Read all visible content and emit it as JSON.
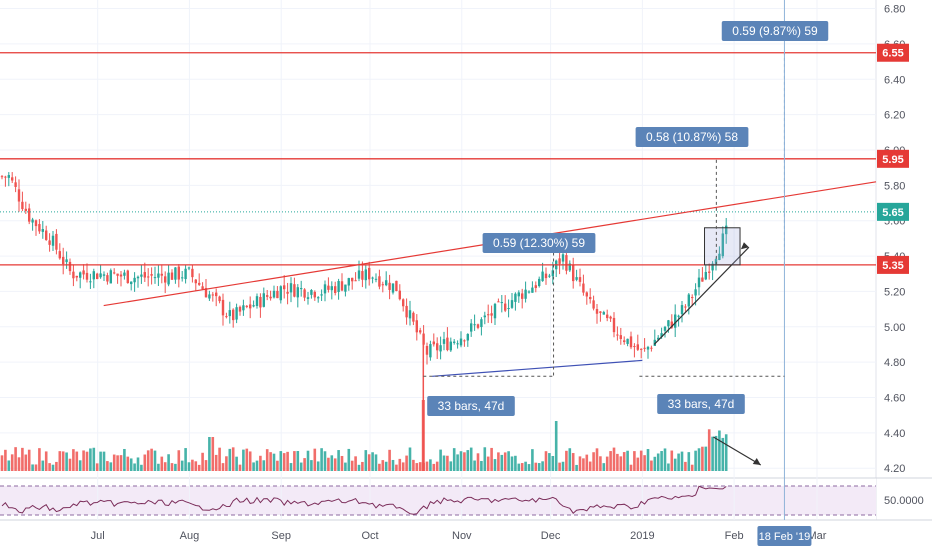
{
  "chart_data": {
    "type": "candlestick",
    "price_axis": {
      "ticks": [
        4.2,
        4.4,
        4.6,
        4.8,
        5.0,
        5.2,
        5.4,
        5.6,
        5.8,
        6.0,
        6.2,
        6.4,
        6.6,
        6.8
      ],
      "tick_labels": [
        "4.20",
        "4.40",
        "4.60",
        "4.80",
        "5.00",
        "5.20",
        "5.40",
        "5.60",
        "5.80",
        "6.00",
        "6.20",
        "6.40",
        "6.60",
        "6.80"
      ],
      "range": [
        4.19,
        6.82
      ]
    },
    "time_axis": {
      "labels": [
        "Jul",
        "Aug",
        "Sep",
        "Oct",
        "Nov",
        "Dec",
        "2019",
        "Feb",
        "Mar"
      ],
      "highlight_label": "18 Feb '19"
    },
    "rsi_axis": {
      "label": "50.0000"
    },
    "price_badges": [
      {
        "value": "6.55",
        "color": "#e53935"
      },
      {
        "value": "5.95",
        "color": "#e53935"
      },
      {
        "value": "5.65",
        "color": "#26a69a"
      },
      {
        "value": "5.35",
        "color": "#e53935"
      }
    ],
    "horizontal_levels": [
      6.55,
      5.95,
      5.35
    ],
    "last_price": 5.65,
    "annotations": {
      "measure_top": "0.59 (9.87%) 59",
      "measure_mid": "0.58 (10.87%) 58",
      "measure_left": "0.59 (12.30%) 59",
      "bars_left": "33 bars, 47d",
      "bars_right": "33 bars, 47d"
    },
    "trend_series_approx_close": [
      {
        "d": "2018-06-01",
        "close": 5.85
      },
      {
        "d": "2018-06-08",
        "close": 5.62
      },
      {
        "d": "2018-06-15",
        "close": 5.5
      },
      {
        "d": "2018-06-22",
        "close": 5.3
      },
      {
        "d": "2018-07-01",
        "close": 5.3
      },
      {
        "d": "2018-07-15",
        "close": 5.28
      },
      {
        "d": "2018-08-01",
        "close": 5.3
      },
      {
        "d": "2018-08-15",
        "close": 5.05
      },
      {
        "d": "2018-09-01",
        "close": 5.22
      },
      {
        "d": "2018-09-15",
        "close": 5.2
      },
      {
        "d": "2018-10-01",
        "close": 5.3
      },
      {
        "d": "2018-10-10",
        "close": 5.22
      },
      {
        "d": "2018-10-20",
        "close": 4.85
      },
      {
        "d": "2018-11-01",
        "close": 4.95
      },
      {
        "d": "2018-11-15",
        "close": 5.12
      },
      {
        "d": "2018-12-01",
        "close": 5.3
      },
      {
        "d": "2018-12-05",
        "close": 5.4
      },
      {
        "d": "2018-12-15",
        "close": 5.1
      },
      {
        "d": "2018-12-25",
        "close": 4.95
      },
      {
        "d": "2019-01-01",
        "close": 4.85
      },
      {
        "d": "2019-01-15",
        "close": 5.1
      },
      {
        "d": "2019-01-22",
        "close": 5.3
      },
      {
        "d": "2019-01-30",
        "close": 5.55
      }
    ],
    "colors": {
      "up": "#26a69a",
      "down": "#ef5350",
      "level": "#e53935",
      "label_bg": "#5b84b8",
      "rsi": "#7b2d5a"
    }
  }
}
